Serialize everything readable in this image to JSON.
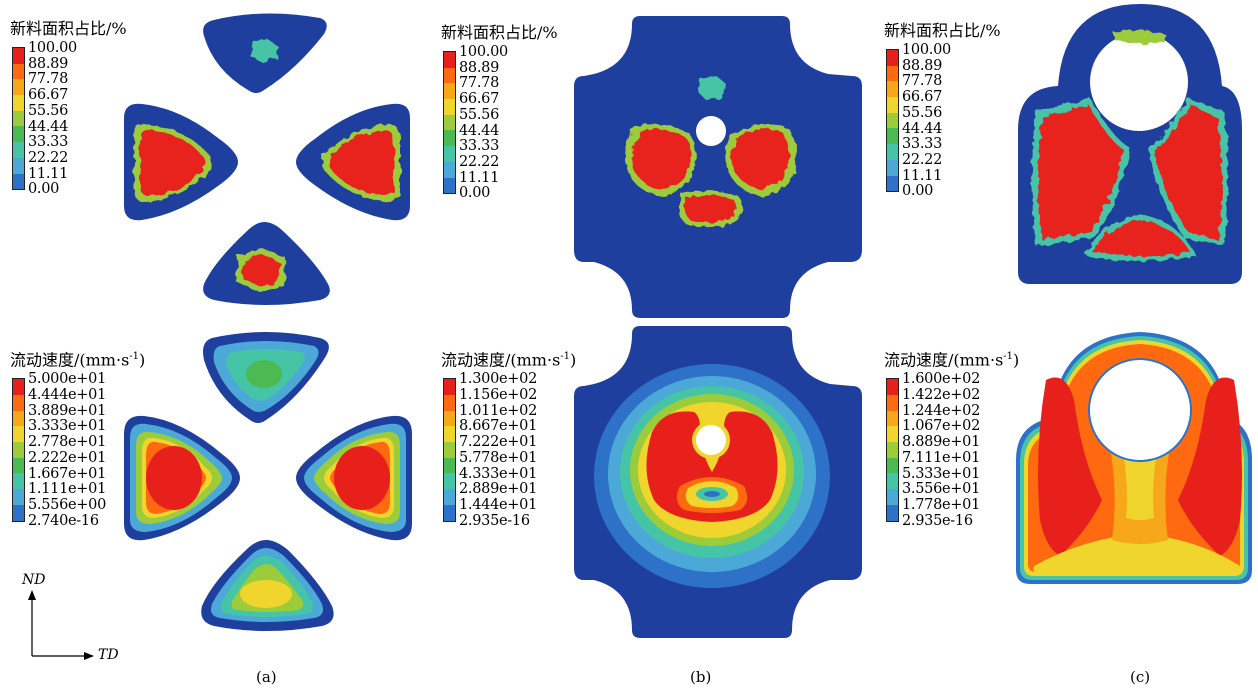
{
  "legend_area": {
    "title": "新料面积占比/%",
    "ticks": [
      "100.00",
      "88.89",
      "77.78",
      "66.67",
      "55.56",
      "44.44",
      "33.33",
      "22.22",
      "11.11",
      "0.00"
    ]
  },
  "legend_speed_a": {
    "title": "流动速度/(mm·s",
    "exp": "-1",
    "close": ")",
    "ticks": [
      "5.000e+01",
      "4.444e+01",
      "3.889e+01",
      "3.333e+01",
      "2.778e+01",
      "2.222e+01",
      "1.667e+01",
      "1.111e+01",
      "5.556e+00",
      "2.740e-16"
    ]
  },
  "legend_speed_b": {
    "title": "流动速度/(mm·s",
    "exp": "-1",
    "close": ")",
    "ticks": [
      "1.300e+02",
      "1.156e+02",
      "1.011e+02",
      "8.667e+01",
      "7.222e+01",
      "5.778e+01",
      "4.333e+01",
      "2.889e+01",
      "1.444e+01",
      "2.935e-16"
    ]
  },
  "legend_speed_c": {
    "title": "流动速度/(mm·s",
    "exp": "-1",
    "close": ")",
    "ticks": [
      "1.600e+02",
      "1.422e+02",
      "1.244e+02",
      "1.067e+02",
      "8.889e+01",
      "7.111e+01",
      "5.333e+01",
      "3.556e+01",
      "1.778e+01",
      "2.935e-16"
    ]
  },
  "axes": {
    "vertical": "ND",
    "horizontal": "TD"
  },
  "panel_labels": {
    "a": "(a)",
    "b": "(b)",
    "c": "(c)"
  },
  "colors": {
    "scale": [
      "#e8201c",
      "#ff6a10",
      "#f7a81a",
      "#f0d62c",
      "#9ccc3a",
      "#4cba52",
      "#46c4a6",
      "#4ca8d6",
      "#2d72c8",
      "#1f3f9e"
    ],
    "outline": "#6fc3e0"
  }
}
